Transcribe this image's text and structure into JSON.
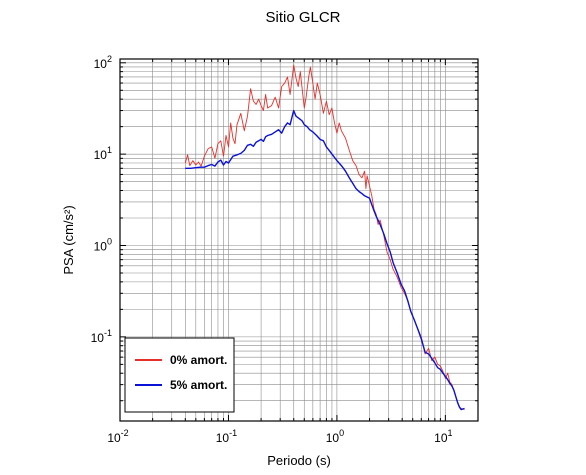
{
  "chart_data": {
    "type": "line",
    "title": "Sitio GLCR",
    "xlabel": "Periodo (s)",
    "ylabel": "PSA (cm/s²)",
    "xscale": "log",
    "yscale": "log",
    "xlim": [
      0.01,
      20
    ],
    "ylim": [
      0.012,
      110
    ],
    "grid": true,
    "legend_position": "bottom-left",
    "x_ticks": [
      {
        "base": "10",
        "exp": "-2"
      },
      {
        "base": "10",
        "exp": "-1"
      },
      {
        "base": "10",
        "exp": "0"
      },
      {
        "base": "10",
        "exp": "1"
      }
    ],
    "y_ticks": [
      {
        "base": "10",
        "exp": "-1"
      },
      {
        "base": "10",
        "exp": "0"
      },
      {
        "base": "10",
        "exp": "1"
      },
      {
        "base": "10",
        "exp": "2"
      }
    ],
    "series": [
      {
        "name": "0% amort.",
        "color": "#e8302a",
        "points": [
          [
            0.04,
            8
          ],
          [
            0.042,
            9.8
          ],
          [
            0.044,
            7.5
          ],
          [
            0.047,
            8.5
          ],
          [
            0.05,
            7.6
          ],
          [
            0.053,
            8.2
          ],
          [
            0.056,
            7.4
          ],
          [
            0.06,
            9.5
          ],
          [
            0.065,
            11.5
          ],
          [
            0.07,
            12
          ],
          [
            0.075,
            9
          ],
          [
            0.08,
            13
          ],
          [
            0.085,
            14
          ],
          [
            0.09,
            9.5
          ],
          [
            0.095,
            16
          ],
          [
            0.1,
            12
          ],
          [
            0.105,
            22
          ],
          [
            0.11,
            15
          ],
          [
            0.115,
            13
          ],
          [
            0.12,
            21
          ],
          [
            0.13,
            28
          ],
          [
            0.14,
            18
          ],
          [
            0.15,
            26
          ],
          [
            0.16,
            52
          ],
          [
            0.17,
            38
          ],
          [
            0.18,
            35
          ],
          [
            0.19,
            40
          ],
          [
            0.2,
            34
          ],
          [
            0.21,
            30
          ],
          [
            0.22,
            45
          ],
          [
            0.23,
            32
          ],
          [
            0.25,
            34
          ],
          [
            0.27,
            42
          ],
          [
            0.29,
            32
          ],
          [
            0.31,
            55
          ],
          [
            0.33,
            60
          ],
          [
            0.35,
            70
          ],
          [
            0.37,
            45
          ],
          [
            0.39,
            75
          ],
          [
            0.4,
            95
          ],
          [
            0.42,
            68
          ],
          [
            0.44,
            55
          ],
          [
            0.46,
            80
          ],
          [
            0.48,
            50
          ],
          [
            0.5,
            32
          ],
          [
            0.52,
            42
          ],
          [
            0.55,
            70
          ],
          [
            0.57,
            90
          ],
          [
            0.6,
            60
          ],
          [
            0.63,
            40
          ],
          [
            0.66,
            60
          ],
          [
            0.7,
            45
          ],
          [
            0.75,
            28
          ],
          [
            0.8,
            38
          ],
          [
            0.85,
            27
          ],
          [
            0.9,
            32
          ],
          [
            0.95,
            22
          ],
          [
            1.0,
            17
          ],
          [
            1.05,
            22
          ],
          [
            1.1,
            18
          ],
          [
            1.2,
            15
          ],
          [
            1.3,
            11
          ],
          [
            1.4,
            8.5
          ],
          [
            1.5,
            7.5
          ],
          [
            1.6,
            6
          ],
          [
            1.7,
            5.5
          ],
          [
            1.8,
            6.5
          ],
          [
            1.85,
            4.2
          ],
          [
            1.9,
            5.8
          ],
          [
            2.0,
            4.5
          ],
          [
            2.1,
            3.5
          ],
          [
            2.2,
            2.5
          ],
          [
            2.3,
            2.2
          ],
          [
            2.4,
            1.7
          ],
          [
            2.5,
            1.9
          ],
          [
            2.7,
            1.3
          ],
          [
            2.9,
            0.85
          ],
          [
            3.1,
            0.7
          ],
          [
            3.3,
            0.55
          ],
          [
            3.6,
            0.45
          ],
          [
            3.9,
            0.35
          ],
          [
            4.2,
            0.3
          ],
          [
            4.5,
            0.25
          ],
          [
            4.8,
            0.19
          ],
          [
            5.2,
            0.15
          ],
          [
            5.6,
            0.12
          ],
          [
            6.0,
            0.1
          ],
          [
            6.5,
            0.065
          ],
          [
            7.0,
            0.075
          ],
          [
            7.5,
            0.055
          ],
          [
            8.0,
            0.06
          ],
          [
            8.5,
            0.05
          ],
          [
            9.0,
            0.048
          ],
          [
            9.5,
            0.042
          ],
          [
            10.0,
            0.035
          ],
          [
            10.5,
            0.04
          ],
          [
            11.0,
            0.032
          ],
          [
            11.5,
            0.03
          ],
          [
            12.0,
            0.026
          ],
          [
            12.5,
            0.022
          ],
          [
            13.0,
            0.019
          ],
          [
            13.5,
            0.017
          ],
          [
            14.0,
            0.0165
          ],
          [
            15.0,
            0.016
          ]
        ]
      },
      {
        "name": "5% amort.",
        "color": "#0a12d8",
        "points": [
          [
            0.04,
            7
          ],
          [
            0.045,
            7
          ],
          [
            0.05,
            7.1
          ],
          [
            0.055,
            7.2
          ],
          [
            0.06,
            7.2
          ],
          [
            0.065,
            7.5
          ],
          [
            0.07,
            7.7
          ],
          [
            0.075,
            7.4
          ],
          [
            0.08,
            8.2
          ],
          [
            0.085,
            8.6
          ],
          [
            0.09,
            7.6
          ],
          [
            0.095,
            8.3
          ],
          [
            0.1,
            8
          ],
          [
            0.11,
            9.5
          ],
          [
            0.12,
            9.8
          ],
          [
            0.13,
            10.2
          ],
          [
            0.14,
            11
          ],
          [
            0.15,
            12.5
          ],
          [
            0.16,
            12.8
          ],
          [
            0.17,
            12.2
          ],
          [
            0.18,
            13.5
          ],
          [
            0.19,
            14
          ],
          [
            0.2,
            14.5
          ],
          [
            0.21,
            13.8
          ],
          [
            0.22,
            15.5
          ],
          [
            0.23,
            16
          ],
          [
            0.25,
            16.5
          ],
          [
            0.27,
            17.5
          ],
          [
            0.29,
            18.5
          ],
          [
            0.31,
            17
          ],
          [
            0.33,
            20
          ],
          [
            0.35,
            22
          ],
          [
            0.37,
            21
          ],
          [
            0.39,
            27
          ],
          [
            0.4,
            30
          ],
          [
            0.42,
            26
          ],
          [
            0.44,
            25
          ],
          [
            0.46,
            24
          ],
          [
            0.48,
            23
          ],
          [
            0.5,
            21
          ],
          [
            0.53,
            20
          ],
          [
            0.56,
            18.5
          ],
          [
            0.6,
            17.5
          ],
          [
            0.65,
            16
          ],
          [
            0.7,
            14.5
          ],
          [
            0.75,
            14
          ],
          [
            0.8,
            12
          ],
          [
            0.85,
            11
          ],
          [
            0.9,
            10
          ],
          [
            1.0,
            8.5
          ],
          [
            1.1,
            7.5
          ],
          [
            1.2,
            6.5
          ],
          [
            1.3,
            5.5
          ],
          [
            1.4,
            4.8
          ],
          [
            1.5,
            4.2
          ],
          [
            1.6,
            3.9
          ],
          [
            1.7,
            3.7
          ],
          [
            1.8,
            3.5
          ],
          [
            1.9,
            3.4
          ],
          [
            2.0,
            3.3
          ],
          [
            2.1,
            2.8
          ],
          [
            2.2,
            2.4
          ],
          [
            2.3,
            2.1
          ],
          [
            2.5,
            1.7
          ],
          [
            2.7,
            1.35
          ],
          [
            2.9,
            1.05
          ],
          [
            3.1,
            0.85
          ],
          [
            3.3,
            0.65
          ],
          [
            3.6,
            0.5
          ],
          [
            3.9,
            0.38
          ],
          [
            4.2,
            0.32
          ],
          [
            4.5,
            0.25
          ],
          [
            4.8,
            0.19
          ],
          [
            5.2,
            0.15
          ],
          [
            5.6,
            0.12
          ],
          [
            6.0,
            0.095
          ],
          [
            6.5,
            0.068
          ],
          [
            7.0,
            0.065
          ],
          [
            7.5,
            0.058
          ],
          [
            8.0,
            0.052
          ],
          [
            8.5,
            0.046
          ],
          [
            9.0,
            0.044
          ],
          [
            9.5,
            0.04
          ],
          [
            10.0,
            0.037
          ],
          [
            10.5,
            0.034
          ],
          [
            11.0,
            0.031
          ],
          [
            11.5,
            0.029
          ],
          [
            12.0,
            0.026
          ],
          [
            12.5,
            0.022
          ],
          [
            13.0,
            0.019
          ],
          [
            13.5,
            0.017
          ],
          [
            14.0,
            0.016
          ],
          [
            15.0,
            0.0165
          ]
        ]
      }
    ]
  }
}
